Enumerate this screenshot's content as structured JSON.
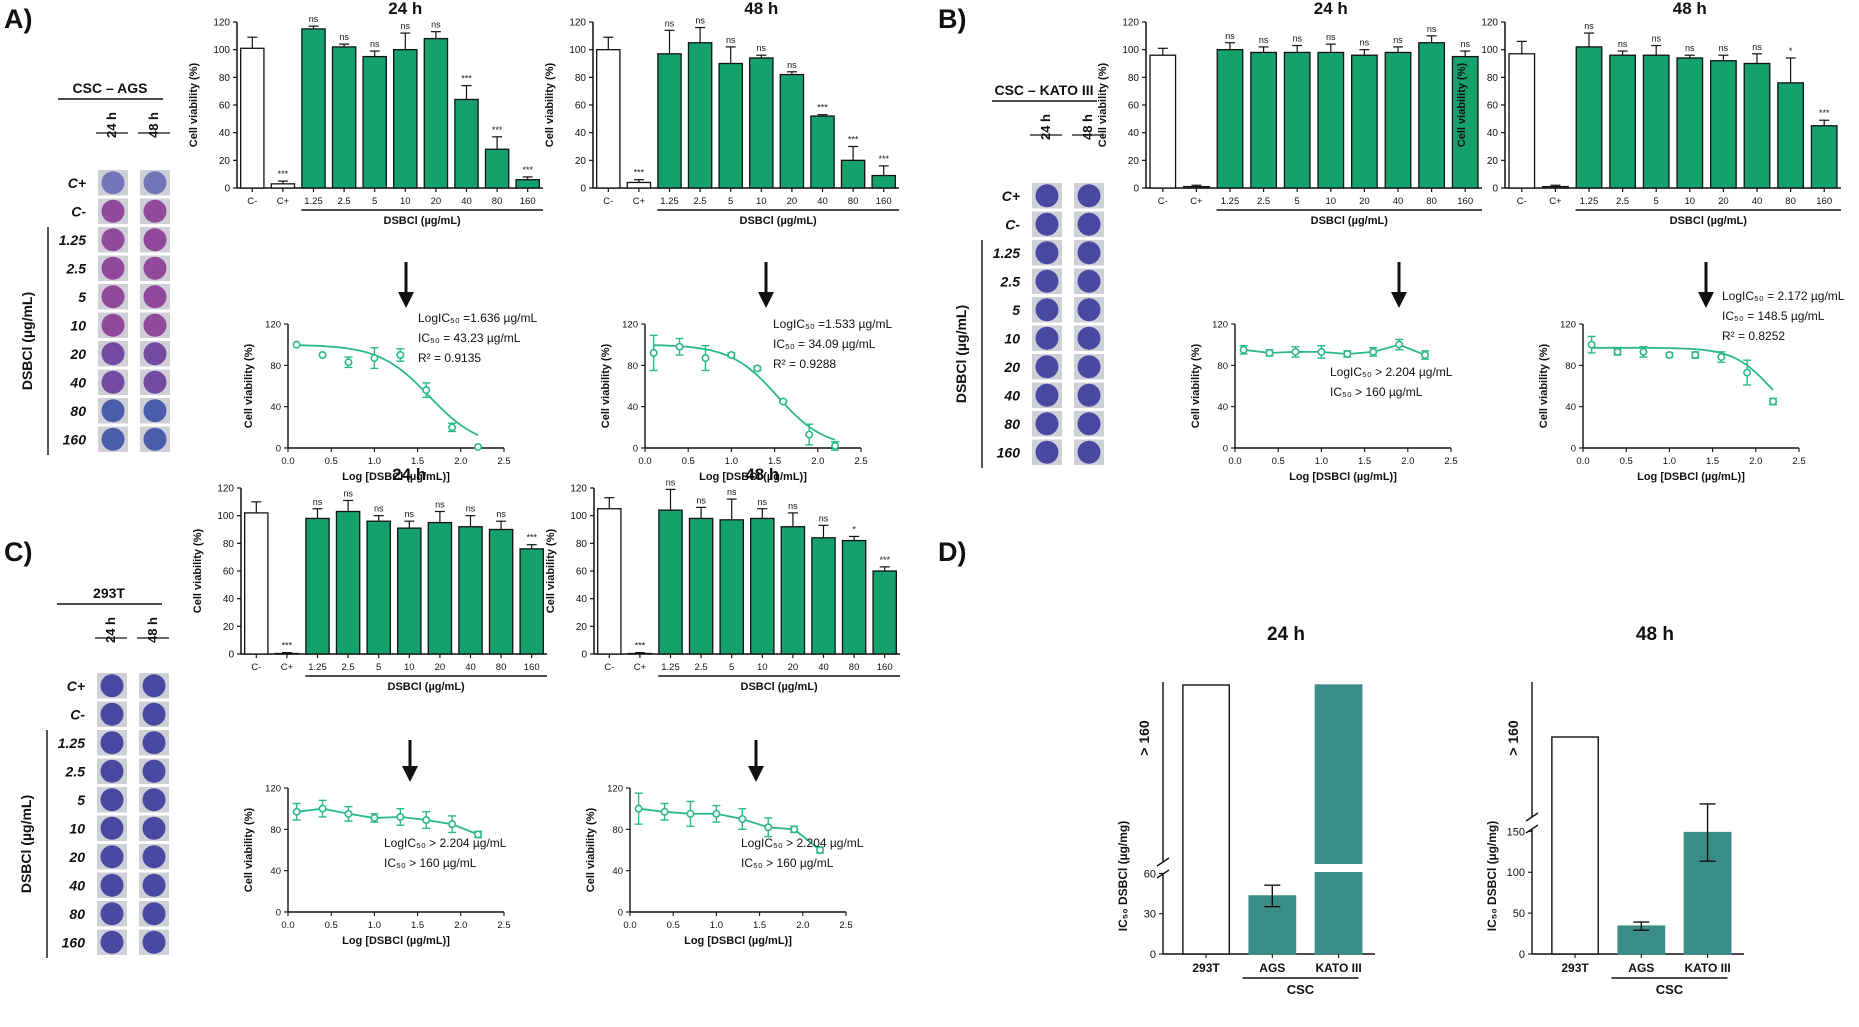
{
  "panel_labels": [
    "A)",
    "B)",
    "C)",
    "D)"
  ],
  "colors": {
    "green": "#15A16E",
    "curve": "#2BB889",
    "teal": "#3A8D87",
    "plate_purple": "#8B3E96",
    "plate_blue": "#3E3E9C"
  },
  "plates": [
    {
      "title": "CSC – AGS",
      "cols": [
        "24 h",
        "48 h"
      ],
      "rows": [
        "C+",
        "C-",
        "1.25",
        "2.5",
        "5",
        "10",
        "20",
        "40",
        "80",
        "160"
      ],
      "axis_label": "DSBCl (µg/mL)",
      "tone": "purple"
    },
    {
      "title": "CSC – KATO III",
      "cols": [
        "24 h",
        "48 h"
      ],
      "rows": [
        "C+",
        "C-",
        "1.25",
        "2.5",
        "5",
        "10",
        "20",
        "40",
        "80",
        "160"
      ],
      "axis_label": "DSBCl (µg/mL)",
      "tone": "blue"
    },
    {
      "title": "293T",
      "cols": [
        "24 h",
        "48 h"
      ],
      "rows": [
        "C+",
        "C-",
        "1.25",
        "2.5",
        "5",
        "10",
        "20",
        "40",
        "80",
        "160"
      ],
      "axis_label": "DSBCl (µg/mL)",
      "tone": "blue"
    }
  ],
  "chart_data": [
    {
      "type": "bar",
      "panel": "A",
      "title": "24 h",
      "categories": [
        "C-",
        "C+",
        "1.25",
        "2.5",
        "5",
        "10",
        "20",
        "40",
        "80",
        "160"
      ],
      "values": [
        101,
        3,
        115,
        102,
        95,
        100,
        108,
        64,
        28,
        6
      ],
      "errors": [
        8,
        2,
        2,
        2,
        4,
        12,
        5,
        10,
        9,
        2
      ],
      "significance": [
        "",
        "***",
        "ns",
        "ns",
        "ns",
        "ns",
        "ns",
        "***",
        "***",
        "***"
      ],
      "ylabel": "Cell viability (%)",
      "xlabel": "DSBCl (µg/mL)",
      "ylim": [
        0,
        120
      ],
      "yticks": [
        0,
        20,
        40,
        60,
        80,
        100,
        120
      ]
    },
    {
      "type": "bar",
      "panel": "A",
      "title": "48 h",
      "categories": [
        "C-",
        "C+",
        "1.25",
        "2.5",
        "5",
        "10",
        "20",
        "40",
        "80",
        "160"
      ],
      "values": [
        100,
        4,
        97,
        105,
        90,
        94,
        82,
        52,
        20,
        9
      ],
      "errors": [
        9,
        2,
        17,
        11,
        12,
        2,
        2,
        1,
        10,
        7
      ],
      "significance": [
        "",
        "***",
        "ns",
        "ns",
        "ns",
        "ns",
        "ns",
        "***",
        "***",
        "***"
      ],
      "ylabel": "Cell viability (%)",
      "xlabel": "DSBCl (µg/mL)",
      "ylim": [
        0,
        120
      ],
      "yticks": [
        0,
        20,
        40,
        60,
        80,
        100,
        120
      ]
    },
    {
      "type": "bar",
      "panel": "B",
      "title": "24 h",
      "categories": [
        "C-",
        "C+",
        "1.25",
        "2.5",
        "5",
        "10",
        "20",
        "40",
        "80",
        "160"
      ],
      "values": [
        96,
        1,
        100,
        98,
        98,
        98,
        96,
        98,
        105,
        95
      ],
      "errors": [
        5,
        1,
        5,
        4,
        5,
        6,
        4,
        4,
        5,
        4
      ],
      "significance": [
        "",
        "",
        "ns",
        "ns",
        "ns",
        "ns",
        "ns",
        "ns",
        "ns",
        "ns"
      ],
      "ylabel": "Cell viability (%)",
      "xlabel": "DSBCl (µg/mL)",
      "ylim": [
        0,
        120
      ],
      "yticks": [
        0,
        20,
        40,
        60,
        80,
        100,
        120
      ]
    },
    {
      "type": "bar",
      "panel": "B",
      "title": "48 h",
      "categories": [
        "C-",
        "C+",
        "1.25",
        "2.5",
        "5",
        "10",
        "20",
        "40",
        "80",
        "160"
      ],
      "values": [
        97,
        1,
        102,
        96,
        96,
        94,
        92,
        90,
        76,
        45
      ],
      "errors": [
        9,
        1,
        10,
        3,
        7,
        2,
        4,
        7,
        18,
        4
      ],
      "significance": [
        "",
        "",
        "ns",
        "ns",
        "ns",
        "ns",
        "ns",
        "ns",
        "*",
        "***"
      ],
      "ylabel": "Cell viability (%)",
      "xlabel": "DSBCl (µg/mL)",
      "ylim": [
        0,
        120
      ],
      "yticks": [
        0,
        20,
        40,
        60,
        80,
        100,
        120
      ]
    },
    {
      "type": "bar",
      "panel": "C",
      "title": "24 h",
      "categories": [
        "C-",
        "C+",
        "1.25",
        "2.5",
        "5",
        "10",
        "20",
        "40",
        "80",
        "160"
      ],
      "values": [
        102,
        0,
        98,
        103,
        96,
        91,
        95,
        92,
        90,
        76
      ],
      "errors": [
        8,
        1,
        7,
        8,
        4,
        5,
        8,
        8,
        6,
        3
      ],
      "significance": [
        "",
        "***",
        "ns",
        "ns",
        "ns",
        "ns",
        "ns",
        "ns",
        "ns",
        "***"
      ],
      "ylabel": "Cell viability (%)",
      "xlabel": "DSBCl (µg/mL)",
      "ylim": [
        0,
        120
      ],
      "yticks": [
        0,
        20,
        40,
        60,
        80,
        100,
        120
      ]
    },
    {
      "type": "bar",
      "panel": "C",
      "title": "48 h",
      "categories": [
        "C-",
        "C+",
        "1.25",
        "2.5",
        "5",
        "10",
        "20",
        "40",
        "80",
        "160"
      ],
      "values": [
        105,
        0,
        104,
        98,
        97,
        98,
        92,
        84,
        82,
        60
      ],
      "errors": [
        8,
        1,
        15,
        8,
        15,
        7,
        10,
        9,
        3,
        3
      ],
      "significance": [
        "",
        "***",
        "ns",
        "ns",
        "ns",
        "ns",
        "ns",
        "ns",
        "*",
        "***"
      ],
      "ylabel": "Cell viability (%)",
      "xlabel": "DSBCl (µg/mL)",
      "ylim": [
        0,
        120
      ],
      "yticks": [
        0,
        20,
        40,
        60,
        80,
        100,
        120
      ]
    },
    {
      "type": "scatter",
      "panel": "A",
      "x": [
        0.1,
        0.4,
        0.7,
        1.0,
        1.3,
        1.6,
        1.9,
        2.2
      ],
      "y": [
        100,
        90,
        83,
        87,
        90,
        56,
        20,
        1
      ],
      "errors": [
        0,
        0,
        5,
        10,
        6,
        7,
        4,
        0
      ],
      "fit": {
        "bottom": 0,
        "top": 100,
        "logIC50": 1.636,
        "hill": 1.5
      },
      "annotations": [
        "LogIC₅₀ =1.636 µg/mL",
        "IC₅₀ = 43.23 µg/mL",
        "R² = 0.9135"
      ],
      "xlabel": "Log [DSBCl (µg/mL)]",
      "ylabel": "Cell viability (%)",
      "xlim": [
        0,
        2.5
      ],
      "ylim": [
        0,
        120
      ],
      "xticks": [
        "0.0",
        "0.5",
        "1.0",
        "1.5",
        "2.0",
        "2.5"
      ],
      "yticks": [
        0,
        40,
        80,
        120
      ]
    },
    {
      "type": "scatter",
      "panel": "A",
      "x": [
        0.1,
        0.4,
        0.7,
        1.0,
        1.3,
        1.6,
        1.9,
        2.2
      ],
      "y": [
        92,
        98,
        87,
        90,
        77,
        45,
        13,
        2
      ],
      "errors": [
        17,
        8,
        12,
        2,
        2,
        1,
        10,
        4
      ],
      "fit": {
        "bottom": 0,
        "top": 100,
        "logIC50": 1.533,
        "hill": 1.6
      },
      "annotations": [
        "LogIC₅₀ =1.533 µg/mL",
        "IC₅₀ = 34.09 µg/mL",
        "R² = 0.9288"
      ],
      "xlabel": "Log [DSBCl (µg/mL)]",
      "ylabel": "Cell viability (%)",
      "xlim": [
        0,
        2.5
      ],
      "ylim": [
        0,
        120
      ],
      "xticks": [
        "0.0",
        "0.5",
        "1.0",
        "1.5",
        "2.0",
        "2.5"
      ],
      "yticks": [
        0,
        40,
        80,
        120
      ]
    },
    {
      "type": "line",
      "panel": "B",
      "x": [
        0.1,
        0.4,
        0.7,
        1.0,
        1.3,
        1.6,
        1.9,
        2.2
      ],
      "y": [
        95,
        92,
        93,
        93,
        91,
        93,
        100,
        90
      ],
      "errors": [
        4,
        3,
        5,
        6,
        3,
        4,
        5,
        4
      ],
      "annotations": [
        "LogIC₅₀ > 2.204 µg/mL",
        "IC₅₀ > 160 µg/mL"
      ],
      "xlabel": "Log [DSBCl (µg/mL)]",
      "ylabel": "Cell viability (%)",
      "xlim": [
        0,
        2.5
      ],
      "ylim": [
        0,
        120
      ],
      "xticks": [
        "0.0",
        "0.5",
        "1.0",
        "1.5",
        "2.0",
        "2.5"
      ],
      "yticks": [
        0,
        40,
        80,
        120
      ]
    },
    {
      "type": "scatter",
      "panel": "B",
      "x": [
        0.1,
        0.4,
        0.7,
        1.0,
        1.3,
        1.6,
        1.9,
        2.2
      ],
      "y": [
        100,
        93,
        93,
        90,
        90,
        88,
        73,
        45
      ],
      "errors": [
        8,
        3,
        5,
        2,
        3,
        5,
        12,
        3
      ],
      "fit": {
        "bottom": 20,
        "top": 97,
        "logIC50": 2.172,
        "hill": 2.0
      },
      "annotations": [
        "LogIC₅₀ = 2.172 µg/mL",
        "IC₅₀ = 148.5 µg/mL",
        "R² = 0.8252"
      ],
      "xlabel": "Log [DSBCl (µg/mL)]",
      "ylabel": "Cell viability (%)",
      "xlim": [
        0,
        2.5
      ],
      "ylim": [
        0,
        120
      ],
      "xticks": [
        "0.0",
        "0.5",
        "1.0",
        "1.5",
        "2.0",
        "2.5"
      ],
      "yticks": [
        0,
        40,
        80,
        120
      ]
    },
    {
      "type": "line",
      "panel": "C",
      "x": [
        0.1,
        0.4,
        0.7,
        1.0,
        1.3,
        1.6,
        1.9,
        2.2
      ],
      "y": [
        97,
        100,
        95,
        91,
        92,
        89,
        85,
        75
      ],
      "errors": [
        8,
        8,
        7,
        4,
        8,
        8,
        8,
        3
      ],
      "annotations": [
        "LogIC₅₀ > 2.204 µg/mL",
        "IC₅₀ > 160 µg/mL"
      ],
      "xlabel": "Log [DSBCl (µg/mL)]",
      "ylabel": "Cell viability (%)",
      "xlim": [
        0,
        2.5
      ],
      "ylim": [
        0,
        120
      ],
      "xticks": [
        "0.0",
        "0.5",
        "1.0",
        "1.5",
        "2.0",
        "2.5"
      ],
      "yticks": [
        0,
        40,
        80,
        120
      ]
    },
    {
      "type": "line",
      "panel": "C",
      "x": [
        0.1,
        0.4,
        0.7,
        1.0,
        1.3,
        1.6,
        1.9,
        2.2
      ],
      "y": [
        100,
        97,
        95,
        95,
        90,
        82,
        80,
        60
      ],
      "errors": [
        15,
        8,
        12,
        8,
        10,
        9,
        3,
        3
      ],
      "annotations": [
        "LogIC₅₀ > 2.204 µg/mL",
        "IC₅₀ > 160 µg/mL"
      ],
      "xlabel": "Log [DSBCl (µg/mL)]",
      "ylabel": "Cell viability (%)",
      "xlim": [
        0,
        2.5
      ],
      "ylim": [
        0,
        120
      ],
      "xticks": [
        "0.0",
        "0.5",
        "1.0",
        "1.5",
        "2.0",
        "2.5"
      ],
      "yticks": [
        0,
        40,
        80,
        120
      ]
    },
    {
      "type": "bar",
      "panel": "D",
      "title": "24 h",
      "categories": [
        "293T",
        "AGS",
        "KATO III"
      ],
      "values": [
        160,
        43.23,
        160
      ],
      "errors": [
        0,
        8,
        0
      ],
      "above_break": [
        true,
        false,
        true
      ],
      "group_label": "CSC",
      "ylabel": "IC₅₀ DSBCl (µg/mg)",
      "break_label": "> 160",
      "yticks": [
        0,
        30,
        60
      ]
    },
    {
      "type": "bar",
      "panel": "D",
      "title": "48 h",
      "categories": [
        "293T",
        "AGS",
        "KATO III"
      ],
      "values": [
        160,
        34.09,
        148.5
      ],
      "errors": [
        0,
        5,
        35
      ],
      "above_break": [
        true,
        false,
        false
      ],
      "group_label": "CSC",
      "ylabel": "IC₅₀ DSBCl (µg/mg)",
      "break_label": "> 160",
      "yticks": [
        0,
        50,
        100,
        150
      ]
    }
  ]
}
